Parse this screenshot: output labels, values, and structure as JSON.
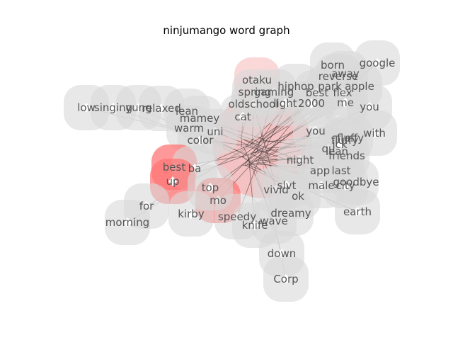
{
  "title": "ninjumango word graph",
  "accent_colors": {
    "node": "#d8d8d8",
    "hot": "#ff5555",
    "edge": "#222222"
  },
  "words": [
    "otaku",
    "born",
    "away",
    "google",
    "reverse",
    "hiphop",
    "park",
    "apple",
    "spring",
    "gaming",
    "best",
    "flex",
    "low",
    "singing",
    "yung",
    "relaxed",
    "lean",
    "oldschool",
    "light",
    "2000",
    "me",
    "you",
    "mamey",
    "cat",
    "warm",
    "you",
    "with",
    "uni",
    "fluffy",
    "lean",
    "color",
    "fluffy",
    "friends",
    "qu",
    "ick",
    "best",
    "last",
    "ba",
    "up",
    "night",
    "goodbye",
    "app",
    "male",
    "city",
    "for",
    "mo",
    "ok",
    "earth",
    "morning",
    "kirby",
    "dreamy",
    "speedy",
    "wave",
    "knife",
    "down",
    "Corp",
    "top",
    "vivid",
    "slvt"
  ]
}
